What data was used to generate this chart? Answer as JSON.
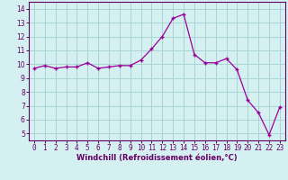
{
  "x": [
    0,
    1,
    2,
    3,
    4,
    5,
    6,
    7,
    8,
    9,
    10,
    11,
    12,
    13,
    14,
    15,
    16,
    17,
    18,
    19,
    20,
    21,
    22,
    23
  ],
  "y": [
    9.7,
    9.9,
    9.7,
    9.8,
    9.8,
    10.1,
    9.7,
    9.8,
    9.9,
    9.9,
    10.3,
    11.1,
    12.0,
    13.3,
    13.6,
    10.7,
    10.1,
    10.1,
    10.4,
    9.6,
    7.4,
    6.5,
    4.9,
    6.9
  ],
  "line_color": "#990099",
  "marker": "+",
  "marker_size": 3,
  "marker_linewidth": 1.0,
  "line_width": 0.9,
  "bg_color": "#d4f0f0",
  "grid_color": "#aad4d4",
  "xlabel": "Windchill (Refroidissement éolien,°C)",
  "xlabel_color": "#660066",
  "tick_color": "#660066",
  "spine_color": "#660066",
  "xlim": [
    -0.5,
    23.5
  ],
  "ylim": [
    4.5,
    14.5
  ],
  "yticks": [
    5,
    6,
    7,
    8,
    9,
    10,
    11,
    12,
    13,
    14
  ],
  "xticks": [
    0,
    1,
    2,
    3,
    4,
    5,
    6,
    7,
    8,
    9,
    10,
    11,
    12,
    13,
    14,
    15,
    16,
    17,
    18,
    19,
    20,
    21,
    22,
    23
  ],
  "tick_fontsize": 5.5,
  "xlabel_fontsize": 6.0
}
